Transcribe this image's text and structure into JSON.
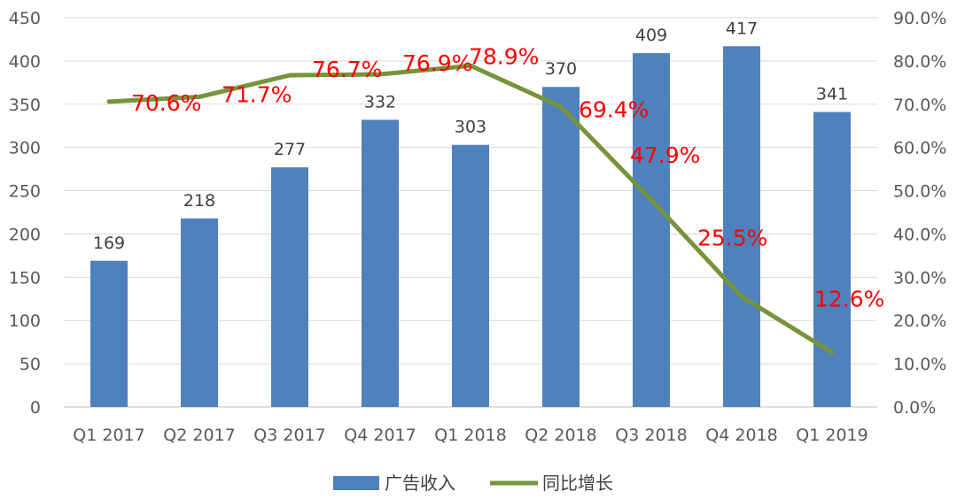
{
  "chart_data": {
    "type": "bar+line",
    "categories": [
      "Q1 2017",
      "Q2 2017",
      "Q3 2017",
      "Q4 2017",
      "Q1 2018",
      "Q2 2018",
      "Q3 2018",
      "Q4 2018",
      "Q1 2019"
    ],
    "series": [
      {
        "name": "广告收入",
        "type": "bar",
        "axis": "left",
        "color": "#4F81BD",
        "values": [
          169,
          218,
          277,
          332,
          303,
          370,
          409,
          417,
          341
        ],
        "labels": [
          "169",
          "218",
          "277",
          "332",
          "303",
          "370",
          "409",
          "417",
          "341"
        ]
      },
      {
        "name": "同比增长",
        "type": "line",
        "axis": "right",
        "color": "#77933C",
        "values": [
          70.6,
          71.7,
          76.7,
          76.9,
          78.9,
          69.4,
          47.9,
          25.5,
          12.6
        ],
        "labels": [
          "70.6%",
          "71.7%",
          "76.7%",
          "76.9%",
          "78.9%",
          "69.4%",
          "47.9%",
          "25.5%",
          "12.6%"
        ]
      }
    ],
    "left_axis": {
      "ylim": [
        0,
        450
      ],
      "ticks": [
        "0",
        "50",
        "100",
        "150",
        "200",
        "250",
        "300",
        "350",
        "400",
        "450"
      ]
    },
    "right_axis": {
      "ylim": [
        0,
        90
      ],
      "ticks": [
        "0.0%",
        "10.0%",
        "20.0%",
        "30.0%",
        "40.0%",
        "50.0%",
        "60.0%",
        "70.0%",
        "80.0%",
        "90.0%"
      ]
    },
    "grid": true,
    "legend_position": "bottom",
    "line_label_color": "#FF0000"
  }
}
